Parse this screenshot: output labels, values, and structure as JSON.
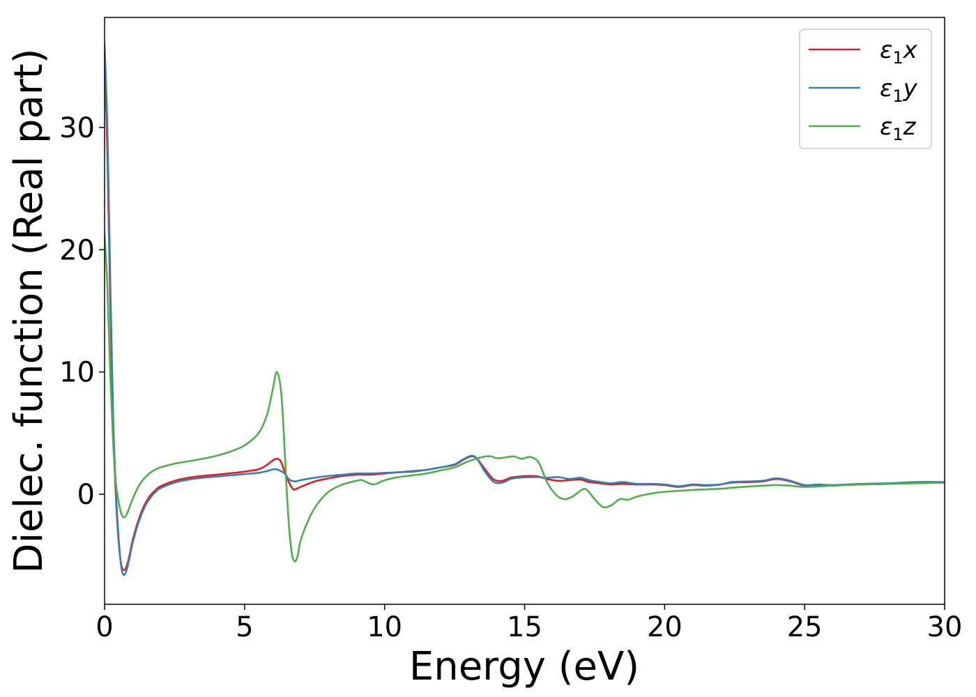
{
  "chart_data": {
    "type": "line",
    "title": "",
    "xlabel": "Energy (eV)",
    "ylabel": "Dielec. function (Real part)",
    "xlim": [
      0,
      30
    ],
    "ylim": [
      -9,
      39
    ],
    "xticks": [
      0,
      5,
      10,
      15,
      20,
      25,
      30
    ],
    "yticks": [
      0,
      10,
      20,
      30
    ],
    "grid": false,
    "legend_position": "top-right",
    "series": [
      {
        "name": "ε1x",
        "legend": {
          "base": "ε",
          "sub": "1",
          "tail": "x"
        },
        "color": "#e41a1c",
        "points": [
          [
            0,
            36.5
          ],
          [
            0.1,
            28
          ],
          [
            0.2,
            16
          ],
          [
            0.3,
            6
          ],
          [
            0.4,
            0
          ],
          [
            0.5,
            -3.8
          ],
          [
            0.6,
            -5.8
          ],
          [
            0.7,
            -6.2
          ],
          [
            0.8,
            -5.8
          ],
          [
            0.9,
            -4.9
          ],
          [
            1.0,
            -3.8
          ],
          [
            1.2,
            -2.2
          ],
          [
            1.4,
            -1.0
          ],
          [
            1.6,
            -0.2
          ],
          [
            1.8,
            0.3
          ],
          [
            2.0,
            0.65
          ],
          [
            2.5,
            1.1
          ],
          [
            3.0,
            1.35
          ],
          [
            3.5,
            1.5
          ],
          [
            4.0,
            1.6
          ],
          [
            4.5,
            1.72
          ],
          [
            5.0,
            1.85
          ],
          [
            5.5,
            2.05
          ],
          [
            5.8,
            2.4
          ],
          [
            6.0,
            2.75
          ],
          [
            6.15,
            2.9
          ],
          [
            6.3,
            2.65
          ],
          [
            6.5,
            1.4
          ],
          [
            6.7,
            0.5
          ],
          [
            6.8,
            0.4
          ],
          [
            7.0,
            0.6
          ],
          [
            7.5,
            1.05
          ],
          [
            8.0,
            1.3
          ],
          [
            8.5,
            1.5
          ],
          [
            9.0,
            1.6
          ],
          [
            9.5,
            1.6
          ],
          [
            10.0,
            1.7
          ],
          [
            10.5,
            1.8
          ],
          [
            11.0,
            1.85
          ],
          [
            11.5,
            2.0
          ],
          [
            12.0,
            2.2
          ],
          [
            12.5,
            2.4
          ],
          [
            12.8,
            2.8
          ],
          [
            13.1,
            3.1
          ],
          [
            13.3,
            2.9
          ],
          [
            13.6,
            2.0
          ],
          [
            13.9,
            1.2
          ],
          [
            14.2,
            1.1
          ],
          [
            14.5,
            1.35
          ],
          [
            14.8,
            1.45
          ],
          [
            15.2,
            1.5
          ],
          [
            15.5,
            1.45
          ],
          [
            15.8,
            1.25
          ],
          [
            16.2,
            1.1
          ],
          [
            16.6,
            1.15
          ],
          [
            17.0,
            1.2
          ],
          [
            17.3,
            1.0
          ],
          [
            17.7,
            0.9
          ],
          [
            18.1,
            0.8
          ],
          [
            18.5,
            0.85
          ],
          [
            19.0,
            0.8
          ],
          [
            19.5,
            0.8
          ],
          [
            20.0,
            0.75
          ],
          [
            20.5,
            0.6
          ],
          [
            21.0,
            0.75
          ],
          [
            21.5,
            0.7
          ],
          [
            22.0,
            0.8
          ],
          [
            22.4,
            0.95
          ],
          [
            23.0,
            1.0
          ],
          [
            23.5,
            1.05
          ],
          [
            24.0,
            1.25
          ],
          [
            24.5,
            1.05
          ],
          [
            25.0,
            0.7
          ],
          [
            25.5,
            0.75
          ],
          [
            26.0,
            0.72
          ],
          [
            27.0,
            0.8
          ],
          [
            28.0,
            0.85
          ],
          [
            29.0,
            0.95
          ],
          [
            30.0,
            0.95
          ]
        ]
      },
      {
        "name": "ε1y",
        "legend": {
          "base": "ε",
          "sub": "1",
          "tail": "y"
        },
        "color": "#377eb8",
        "points": [
          [
            0,
            36.8
          ],
          [
            0.1,
            30
          ],
          [
            0.2,
            18
          ],
          [
            0.3,
            7
          ],
          [
            0.4,
            0.5
          ],
          [
            0.5,
            -3.5
          ],
          [
            0.6,
            -6.0
          ],
          [
            0.7,
            -6.6
          ],
          [
            0.8,
            -6.1
          ],
          [
            0.9,
            -5.1
          ],
          [
            1.0,
            -4.0
          ],
          [
            1.2,
            -2.4
          ],
          [
            1.4,
            -1.2
          ],
          [
            1.6,
            -0.4
          ],
          [
            1.8,
            0.15
          ],
          [
            2.0,
            0.5
          ],
          [
            2.5,
            0.95
          ],
          [
            3.0,
            1.2
          ],
          [
            3.5,
            1.35
          ],
          [
            4.0,
            1.45
          ],
          [
            4.5,
            1.55
          ],
          [
            5.0,
            1.65
          ],
          [
            5.5,
            1.75
          ],
          [
            5.8,
            1.9
          ],
          [
            6.1,
            2.05
          ],
          [
            6.4,
            1.75
          ],
          [
            6.6,
            1.2
          ],
          [
            6.8,
            1.05
          ],
          [
            7.0,
            1.15
          ],
          [
            7.5,
            1.35
          ],
          [
            8.0,
            1.5
          ],
          [
            8.5,
            1.6
          ],
          [
            9.0,
            1.7
          ],
          [
            9.5,
            1.7
          ],
          [
            10.0,
            1.75
          ],
          [
            10.5,
            1.8
          ],
          [
            11.0,
            1.9
          ],
          [
            11.5,
            2.0
          ],
          [
            12.0,
            2.2
          ],
          [
            12.5,
            2.45
          ],
          [
            12.8,
            2.85
          ],
          [
            13.1,
            3.15
          ],
          [
            13.3,
            2.9
          ],
          [
            13.6,
            1.8
          ],
          [
            13.9,
            1.0
          ],
          [
            14.2,
            0.95
          ],
          [
            14.5,
            1.25
          ],
          [
            14.8,
            1.35
          ],
          [
            15.2,
            1.4
          ],
          [
            15.5,
            1.4
          ],
          [
            15.8,
            1.35
          ],
          [
            16.2,
            1.4
          ],
          [
            16.6,
            1.25
          ],
          [
            17.0,
            1.35
          ],
          [
            17.3,
            1.15
          ],
          [
            17.7,
            1.0
          ],
          [
            18.1,
            0.9
          ],
          [
            18.5,
            1.0
          ],
          [
            19.0,
            0.85
          ],
          [
            19.5,
            0.85
          ],
          [
            20.0,
            0.8
          ],
          [
            20.5,
            0.65
          ],
          [
            21.0,
            0.8
          ],
          [
            21.5,
            0.75
          ],
          [
            22.0,
            0.8
          ],
          [
            22.4,
            1.0
          ],
          [
            23.0,
            1.05
          ],
          [
            23.5,
            1.1
          ],
          [
            24.0,
            1.3
          ],
          [
            24.5,
            1.1
          ],
          [
            25.0,
            0.75
          ],
          [
            25.5,
            0.8
          ],
          [
            26.0,
            0.75
          ],
          [
            27.0,
            0.85
          ],
          [
            28.0,
            0.9
          ],
          [
            29.0,
            1.0
          ],
          [
            30.0,
            1.0
          ]
        ]
      },
      {
        "name": "ε1z",
        "legend": {
          "base": "ε",
          "sub": "1",
          "tail": "z"
        },
        "color": "#4daf4a",
        "points": [
          [
            0,
            21.3
          ],
          [
            0.1,
            17
          ],
          [
            0.2,
            10
          ],
          [
            0.3,
            4.5
          ],
          [
            0.4,
            1.0
          ],
          [
            0.5,
            -0.6
          ],
          [
            0.6,
            -1.6
          ],
          [
            0.7,
            -1.9
          ],
          [
            0.8,
            -1.6
          ],
          [
            0.9,
            -1.0
          ],
          [
            1.0,
            -0.4
          ],
          [
            1.2,
            0.6
          ],
          [
            1.4,
            1.25
          ],
          [
            1.6,
            1.7
          ],
          [
            1.8,
            2.0
          ],
          [
            2.0,
            2.2
          ],
          [
            2.5,
            2.5
          ],
          [
            3.0,
            2.7
          ],
          [
            3.5,
            2.9
          ],
          [
            4.0,
            3.15
          ],
          [
            4.5,
            3.5
          ],
          [
            5.0,
            4.0
          ],
          [
            5.5,
            5.0
          ],
          [
            5.8,
            6.5
          ],
          [
            6.0,
            8.5
          ],
          [
            6.15,
            10.0
          ],
          [
            6.3,
            8.5
          ],
          [
            6.4,
            5.0
          ],
          [
            6.5,
            0.5
          ],
          [
            6.6,
            -3.0
          ],
          [
            6.7,
            -5.0
          ],
          [
            6.8,
            -5.5
          ],
          [
            6.9,
            -5.0
          ],
          [
            7.0,
            -3.8
          ],
          [
            7.3,
            -2.0
          ],
          [
            7.6,
            -0.8
          ],
          [
            8.0,
            0.2
          ],
          [
            8.5,
            0.8
          ],
          [
            9.0,
            1.1
          ],
          [
            9.2,
            1.15
          ],
          [
            9.6,
            0.8
          ],
          [
            10.0,
            1.15
          ],
          [
            10.5,
            1.4
          ],
          [
            11.0,
            1.55
          ],
          [
            11.5,
            1.7
          ],
          [
            12.0,
            1.95
          ],
          [
            12.5,
            2.2
          ],
          [
            13.0,
            2.7
          ],
          [
            13.5,
            3.05
          ],
          [
            13.8,
            3.1
          ],
          [
            14.0,
            2.95
          ],
          [
            14.3,
            3.0
          ],
          [
            14.6,
            3.1
          ],
          [
            14.9,
            2.9
          ],
          [
            15.2,
            3.05
          ],
          [
            15.5,
            2.6
          ],
          [
            15.8,
            1.0
          ],
          [
            16.1,
            0.0
          ],
          [
            16.4,
            -0.4
          ],
          [
            16.7,
            -0.2
          ],
          [
            17.0,
            0.3
          ],
          [
            17.2,
            0.4
          ],
          [
            17.5,
            -0.4
          ],
          [
            17.8,
            -1.05
          ],
          [
            18.1,
            -0.9
          ],
          [
            18.4,
            -0.4
          ],
          [
            18.7,
            -0.45
          ],
          [
            19.0,
            -0.2
          ],
          [
            19.5,
            0.05
          ],
          [
            20.0,
            0.2
          ],
          [
            21.0,
            0.35
          ],
          [
            22.0,
            0.45
          ],
          [
            22.5,
            0.55
          ],
          [
            23.5,
            0.7
          ],
          [
            24.0,
            0.75
          ],
          [
            24.5,
            0.7
          ],
          [
            25.0,
            0.6
          ],
          [
            26.0,
            0.7
          ],
          [
            27.0,
            0.8
          ],
          [
            28.0,
            0.85
          ],
          [
            29.0,
            0.9
          ],
          [
            30.0,
            0.95
          ]
        ]
      }
    ]
  }
}
